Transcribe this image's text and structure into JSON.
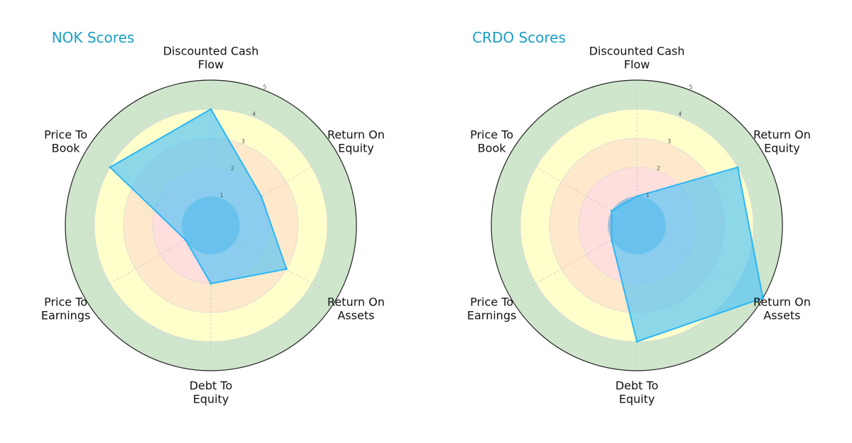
{
  "chart_data": [
    {
      "type": "radar",
      "title": "NOK Scores",
      "axes": [
        "Discounted Cash Flow",
        "Return On Equity",
        "Return On Assets",
        "Debt To Equity",
        "Price To Earnings",
        "Price To Book"
      ],
      "series": [
        {
          "values": [
            4,
            2,
            3,
            2,
            1,
            4
          ]
        }
      ],
      "rlim": [
        0,
        5
      ],
      "ticks": [
        "1",
        "2",
        "3",
        "4",
        "5"
      ],
      "grid": true,
      "legend": "none"
    },
    {
      "type": "radar",
      "title": "CRDO Scores",
      "axes": [
        "Discounted Cash Flow",
        "Return On Equity",
        "Return On Assets",
        "Debt To Equity",
        "Price To Earnings",
        "Price To Book"
      ],
      "series": [
        {
          "values": [
            1,
            4,
            5,
            4,
            1,
            1
          ]
        }
      ],
      "rlim": [
        0,
        5
      ],
      "ticks": [
        "1",
        "2",
        "3",
        "4",
        "5"
      ],
      "grid": true,
      "legend": "none"
    }
  ],
  "colors": {
    "title": "#1a9fc4",
    "fill": "#4fc3f7",
    "stroke": "#29b6f6",
    "band_0_1": "#9bbfdc",
    "band_1_2": "#ffdede",
    "band_2_3": "#ffe9cc",
    "band_3_4": "#ffffcc",
    "band_4_5": "#cfe6cc",
    "outline": "#222222"
  }
}
